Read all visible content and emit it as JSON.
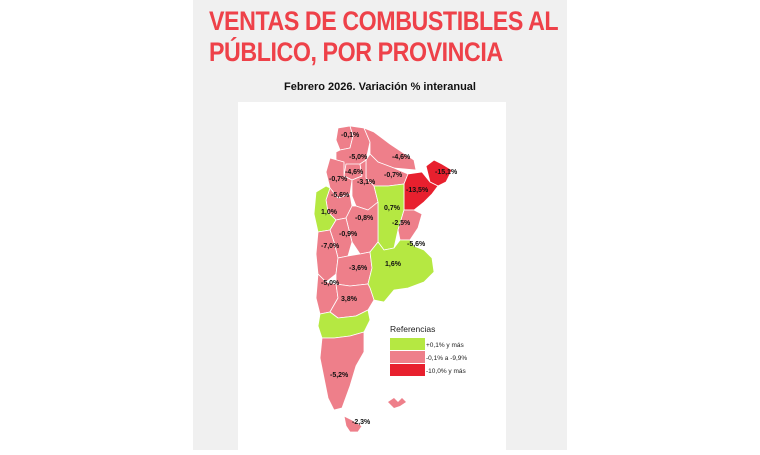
{
  "title_line1": "VENTAS DE COMBUSTIBLES AL",
  "title_line2": "PÚBLICO, POR PROVINCIA",
  "subtitle": "Febrero 2026. Variación % interanual",
  "colors": {
    "accent_title": "#ee4149",
    "positive": "#b5e842",
    "negative_mild": "#ee7f8a",
    "negative_strong": "#e8202e"
  },
  "legend": {
    "title": "Referencias",
    "items": [
      {
        "label": "+0,1% y más",
        "color": "#b5e842"
      },
      {
        "label": "-0,1% a -9,9%",
        "color": "#ee7f8a"
      },
      {
        "label": "-10,0% y más",
        "color": "#e8202e"
      }
    ]
  },
  "provinces": [
    {
      "label": "-0,1%",
      "category": "negative_mild"
    },
    {
      "label": "-5,0%",
      "category": "negative_mild"
    },
    {
      "label": "-4,6%",
      "category": "negative_mild"
    },
    {
      "label": "-4,6%",
      "category": "negative_mild"
    },
    {
      "label": "-0,7%",
      "category": "negative_mild"
    },
    {
      "label": "-0,7%",
      "category": "negative_mild"
    },
    {
      "label": "-3,1%",
      "category": "negative_mild"
    },
    {
      "label": "-15,1%",
      "category": "negative_strong"
    },
    {
      "label": "-13,5%",
      "category": "negative_strong"
    },
    {
      "label": "-5,6%",
      "category": "negative_mild"
    },
    {
      "label": "1,0%",
      "category": "positive"
    },
    {
      "label": "0,7%",
      "category": "positive"
    },
    {
      "label": "-0,8%",
      "category": "negative_mild"
    },
    {
      "label": "-2,5%",
      "category": "negative_mild"
    },
    {
      "label": "-0,9%",
      "category": "negative_mild"
    },
    {
      "label": "-7,0%",
      "category": "negative_mild"
    },
    {
      "label": "-5,6%",
      "category": "negative_mild"
    },
    {
      "label": "1,6%",
      "category": "positive"
    },
    {
      "label": "-3,6%",
      "category": "negative_mild"
    },
    {
      "label": "-5,0%",
      "category": "negative_mild"
    },
    {
      "label": "3,8%",
      "category": "positive"
    },
    {
      "label": "-5,2%",
      "category": "negative_mild"
    },
    {
      "label": "-2,3%",
      "category": "negative_mild"
    }
  ]
}
